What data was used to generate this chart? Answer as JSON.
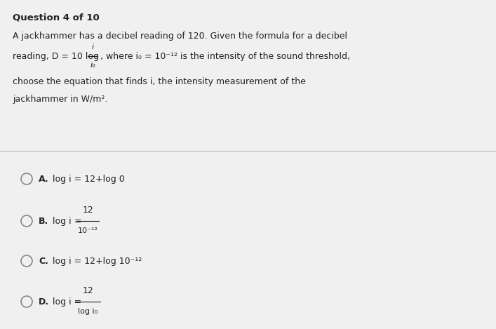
{
  "background_color": "#f0f0f0",
  "text_color": "#222222",
  "question_header": "Question 4 of 10",
  "line1": "A jackhammer has a decibel reading of 120. Given the formula for a decibel",
  "line2_pre": "reading, D = 10 log ",
  "line2_frac_num": "i",
  "line2_frac_den": "i₀",
  "line2_post": ", where i₀ = 10⁻¹² is the intensity of the sound threshold,",
  "line3": "choose the equation that finds i, the intensity measurement of the",
  "line4": "jackhammer in W/m².",
  "optA_label": "A.",
  "optA_text": "log i = 12+log 0",
  "optB_label": "B.",
  "optB_pre": "log i = ",
  "optB_num": "12",
  "optB_den": "10⁻¹²",
  "optC_label": "C.",
  "optC_text": "log i = 12+log 10⁻¹²",
  "optD_label": "D.",
  "optD_pre": "log i = ",
  "optD_num": "12",
  "optD_den": "log i₀",
  "header_fontsize": 9.5,
  "body_fontsize": 9.0,
  "option_fontsize": 9.0,
  "divider_color": "#bbbbbb",
  "circle_color": "#888888"
}
